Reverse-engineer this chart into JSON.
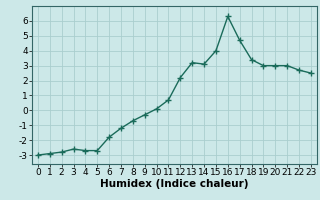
{
  "x": [
    0,
    1,
    2,
    3,
    4,
    5,
    6,
    7,
    8,
    9,
    10,
    11,
    12,
    13,
    14,
    15,
    16,
    17,
    18,
    19,
    20,
    21,
    22,
    23
  ],
  "y": [
    -3.0,
    -2.9,
    -2.8,
    -2.6,
    -2.7,
    -2.7,
    -1.8,
    -1.2,
    -0.7,
    -0.3,
    0.1,
    0.7,
    2.2,
    3.2,
    3.1,
    4.0,
    6.3,
    4.7,
    3.4,
    3.0,
    3.0,
    3.0,
    2.7,
    2.5
  ],
  "xlabel": "Humidex (Indice chaleur)",
  "xlim": [
    -0.5,
    23.5
  ],
  "ylim": [
    -3.6,
    7.0
  ],
  "yticks": [
    -3,
    -2,
    -1,
    0,
    1,
    2,
    3,
    4,
    5,
    6
  ],
  "xticks": [
    0,
    1,
    2,
    3,
    4,
    5,
    6,
    7,
    8,
    9,
    10,
    11,
    12,
    13,
    14,
    15,
    16,
    17,
    18,
    19,
    20,
    21,
    22,
    23
  ],
  "line_color": "#1a6b5a",
  "marker": "+",
  "bg_color": "#cce8e8",
  "grid_color": "#aacece",
  "tick_fontsize": 6.5,
  "xlabel_fontsize": 7.5,
  "line_width": 1.0,
  "marker_size": 4.5,
  "marker_edge_width": 1.0
}
